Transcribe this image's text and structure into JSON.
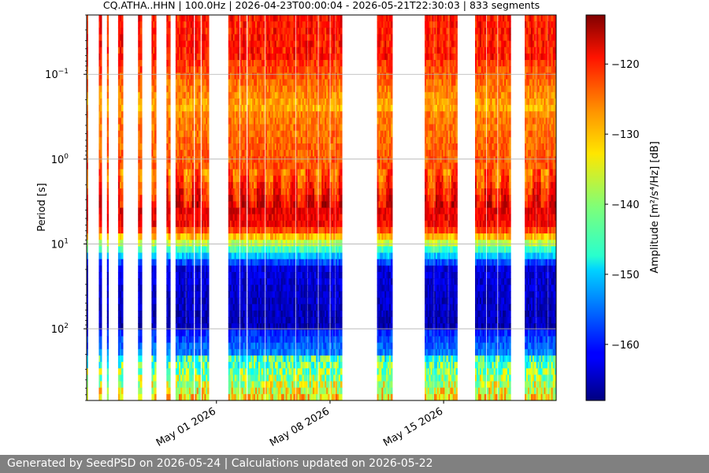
{
  "footer": {
    "text": "Generated by SeedPSD on 2026-05-24 | Calculations updated on 2026-05-22"
  },
  "chart_data": {
    "type": "heatmap",
    "title": "CQ.ATHA..HHN | 100.0Hz | 2026-04-23T00:00:04 - 2026-05-21T22:30:03 | 833 segments",
    "xlabel": "",
    "ylabel": "Period [s]",
    "colorbar_label": "Amplitude [m²/s⁴/Hz] [dB]",
    "x_range": [
      "2026-04-23T00:00:04",
      "2026-05-21T22:30:03"
    ],
    "x_ticks": [
      {
        "date": "2026-05-01",
        "label": "May 01 2026"
      },
      {
        "date": "2026-05-08",
        "label": "May 08 2026"
      },
      {
        "date": "2026-05-15",
        "label": "May 15 2026"
      }
    ],
    "y_scale": "log",
    "y_inverted": true,
    "y_range_s": [
      0.02,
      700
    ],
    "y_ticks": [
      {
        "value": 0.1,
        "base": "10",
        "exp": "−1"
      },
      {
        "value": 1,
        "base": "10",
        "exp": "0"
      },
      {
        "value": 10,
        "base": "10",
        "exp": "1"
      },
      {
        "value": 100,
        "base": "10",
        "exp": "2"
      }
    ],
    "grid": "horizontal",
    "colormap": "jet",
    "color_range_db": [
      -168,
      -113
    ],
    "colorbar_ticks": [
      -120,
      -130,
      -140,
      -150,
      -160
    ],
    "data_blocks": [
      [
        "2026-04-23T00:00",
        "2026-04-23T01:30"
      ],
      [
        "2026-04-23T18:00",
        "2026-04-23T22:00"
      ],
      [
        "2026-04-24T06:00",
        "2026-04-24T08:00"
      ],
      [
        "2026-04-24T22:30",
        "2026-04-25T05:30"
      ],
      [
        "2026-04-26T04:00",
        "2026-04-26T09:30"
      ],
      [
        "2026-04-27T00:00",
        "2026-04-27T06:30"
      ],
      [
        "2026-04-27T22:00",
        "2026-04-28T03:30"
      ],
      [
        "2026-04-28T11:30",
        "2026-04-29T02:00"
      ],
      [
        "2026-04-29T03:00",
        "2026-04-29T14:00"
      ],
      [
        "2026-04-29T16:00",
        "2026-04-30T00:00"
      ],
      [
        "2026-04-30T02:00",
        "2026-04-30T12:30"
      ],
      [
        "2026-05-01T17:30",
        "2026-05-02T09:30"
      ],
      [
        "2026-05-02T11:00",
        "2026-05-02T20:00"
      ],
      [
        "2026-05-02T22:00",
        "2026-05-03T23:00"
      ],
      [
        "2026-05-04T00:30",
        "2026-05-05T20:00"
      ],
      [
        "2026-05-05T21:30",
        "2026-05-06T14:00"
      ],
      [
        "2026-05-06T15:00",
        "2026-05-07T05:30"
      ],
      [
        "2026-05-07T07:00",
        "2026-05-07T23:00"
      ],
      [
        "2026-05-08T00:30",
        "2026-05-08T07:00"
      ],
      [
        "2026-05-08T08:00",
        "2026-05-08T17:30"
      ],
      [
        "2026-05-10T21:30",
        "2026-05-11T20:00"
      ],
      [
        "2026-05-13T20:00",
        "2026-05-14T09:00"
      ],
      [
        "2026-05-14T10:00",
        "2026-05-15T06:00"
      ],
      [
        "2026-05-15T07:00",
        "2026-05-15T20:00"
      ],
      [
        "2026-05-16T22:30",
        "2026-05-17T14:30"
      ],
      [
        "2026-05-17T16:00",
        "2026-05-18T07:00"
      ],
      [
        "2026-05-18T08:30",
        "2026-05-19T03:00"
      ],
      [
        "2026-05-20T00:00",
        "2026-05-20T16:00"
      ],
      [
        "2026-05-20T17:00",
        "2026-05-21T09:00"
      ],
      [
        "2026-05-21T10:00",
        "2026-05-21T22:30"
      ]
    ]
  }
}
